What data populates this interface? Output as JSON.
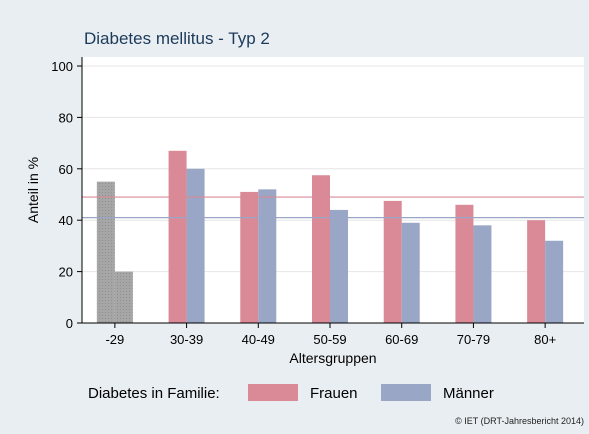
{
  "chart_data": {
    "type": "bar",
    "title": "Diabetes mellitus - Typ 2",
    "xlabel": "Altersgruppen",
    "ylabel": "Anteil in %",
    "ylim": [
      0,
      100
    ],
    "yticks": [
      0,
      20,
      40,
      60,
      80,
      100
    ],
    "categories": [
      "-29",
      "30-39",
      "40-49",
      "50-59",
      "60-69",
      "70-79",
      "80+"
    ],
    "series": [
      {
        "name": "Frauen",
        "color": "#d98a96",
        "values": [
          55,
          67,
          51,
          57.5,
          47.5,
          46,
          40
        ]
      },
      {
        "name": "Männer",
        "color": "#99a6c6",
        "values": [
          20,
          60,
          52,
          44,
          39,
          38,
          32
        ]
      }
    ],
    "first_group_color": "#a6a6a6",
    "reference_lines": [
      {
        "series": "Frauen",
        "value": 49,
        "color": "#d98a96"
      },
      {
        "series": "Männer",
        "value": 41,
        "color": "#99a6c6"
      }
    ],
    "grid": true,
    "legend": {
      "title": "Diabetes in Familie:",
      "position": "bottom"
    },
    "credit": "© IET (DRT-Jahresbericht 2014)"
  }
}
